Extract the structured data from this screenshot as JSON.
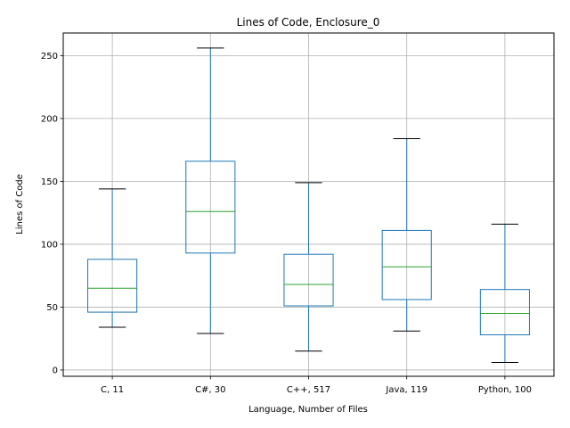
{
  "chart_data": {
    "type": "box",
    "title": "Lines of Code, Enclosure_0",
    "xlabel": "Language, Number of Files",
    "ylabel": "Lines of Code",
    "ylim": [
      -5,
      268
    ],
    "yticks": [
      0,
      50,
      100,
      150,
      200,
      250
    ],
    "grid": true,
    "categories": [
      "C, 11",
      "C#, 30",
      "C++, 517",
      "Java, 119",
      "Python, 100"
    ],
    "boxes": [
      {
        "whisker_low": 34,
        "q1": 46,
        "median": 65,
        "q3": 88,
        "whisker_high": 144
      },
      {
        "whisker_low": 29,
        "q1": 93,
        "median": 126,
        "q3": 166,
        "whisker_high": 256
      },
      {
        "whisker_low": 15,
        "q1": 51,
        "median": 68,
        "q3": 92,
        "whisker_high": 149
      },
      {
        "whisker_low": 31,
        "q1": 56,
        "median": 82,
        "q3": 111,
        "whisker_high": 184
      },
      {
        "whisker_low": 6,
        "q1": 28,
        "median": 45,
        "q3": 64,
        "whisker_high": 116
      }
    ],
    "colors": {
      "box": "#1f77b4",
      "median": "#2ca02c",
      "cap": "#000000",
      "grid": "#b0b0b0"
    }
  }
}
